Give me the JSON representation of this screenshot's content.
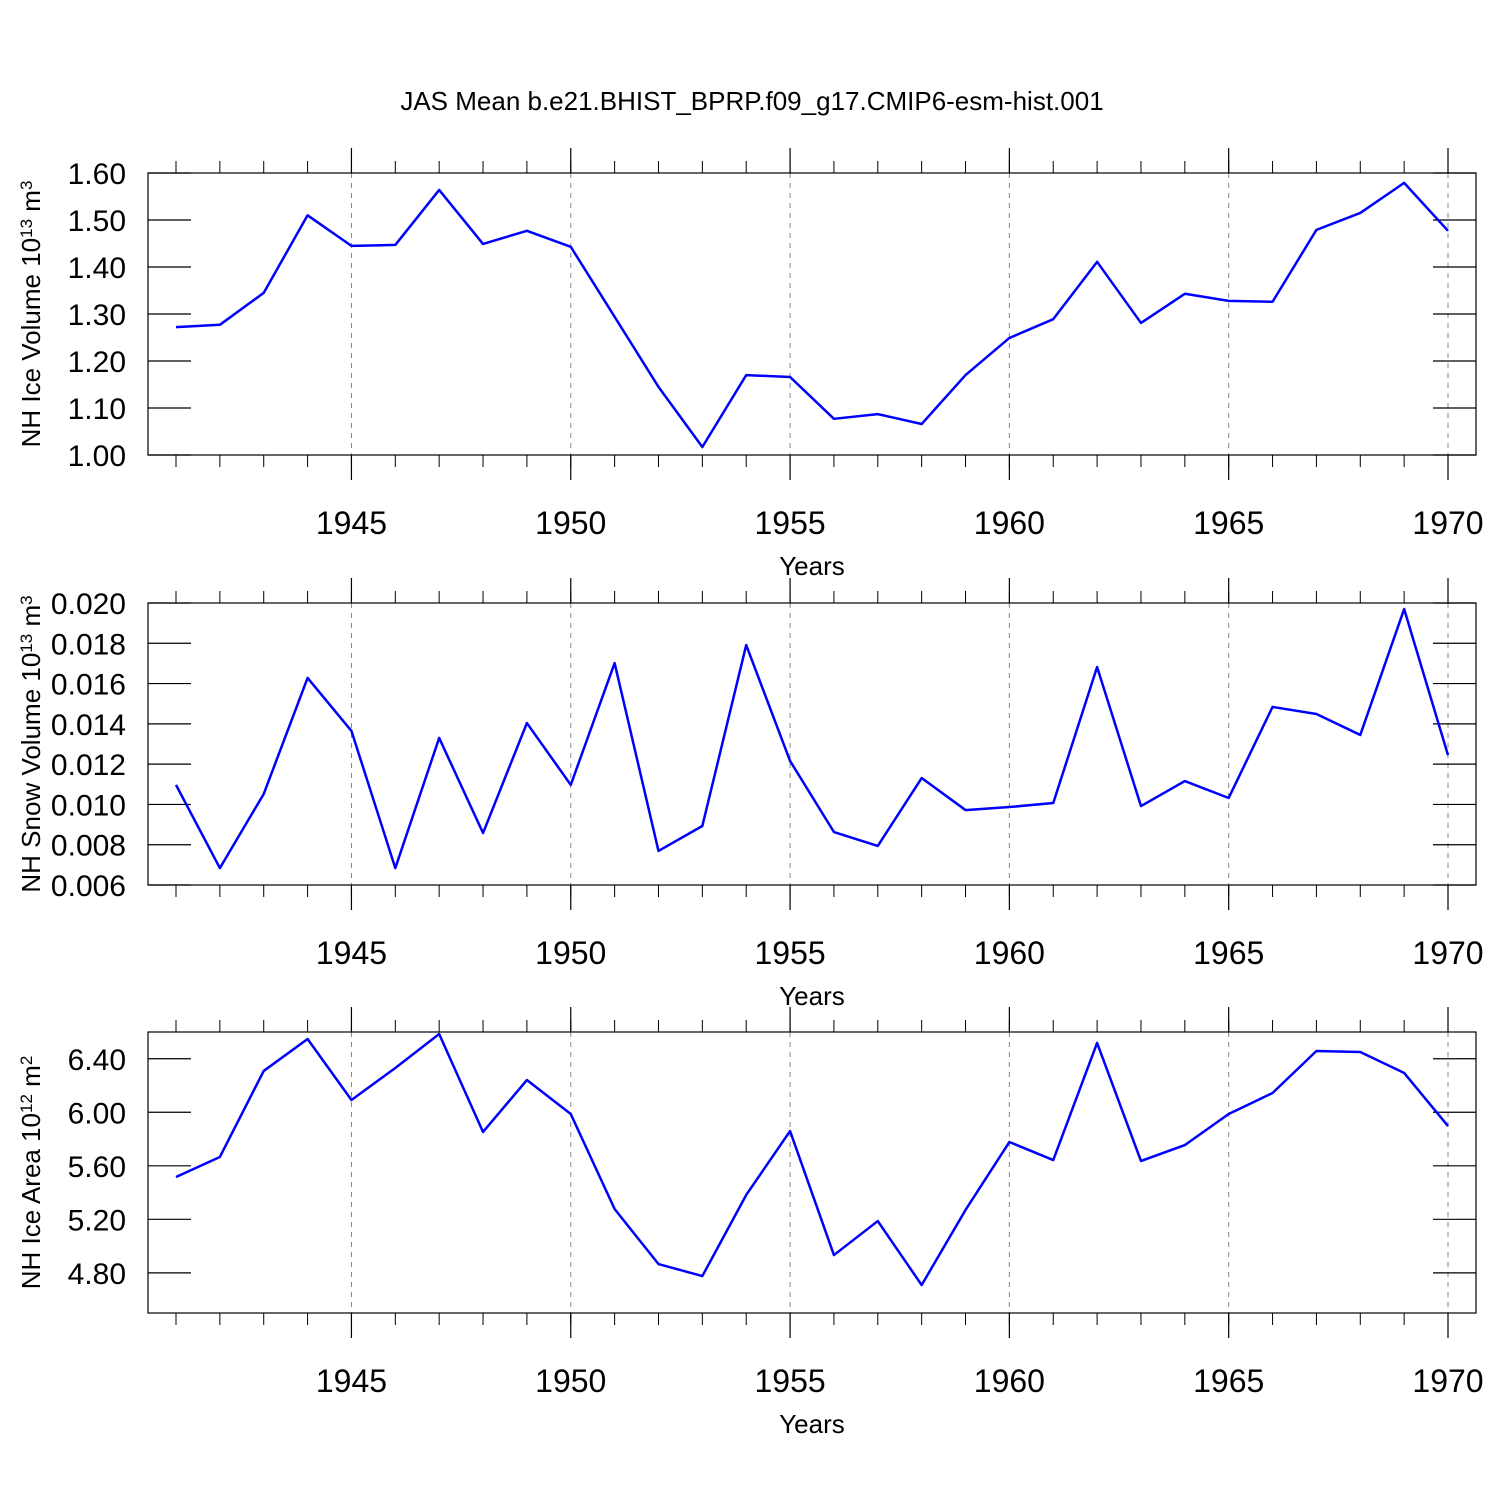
{
  "chart_data": [
    {
      "type": "line",
      "title": "JAS Mean b.e21.BHIST_BPRP.f09_g17.CMIP6-esm-hist.001",
      "ylabel": [
        "NH Ice Volume 10",
        "13",
        " m",
        "3"
      ],
      "xlabel": "Years",
      "color": "#0000ff",
      "grid": "x",
      "x": [
        1941,
        1942,
        1943,
        1944,
        1945,
        1946,
        1947,
        1948,
        1949,
        1950,
        1951,
        1952,
        1953,
        1954,
        1955,
        1956,
        1957,
        1958,
        1959,
        1960,
        1961,
        1962,
        1963,
        1964,
        1965,
        1966,
        1967,
        1968,
        1969,
        1970
      ],
      "values": [
        1.272,
        1.277,
        1.345,
        1.51,
        1.445,
        1.447,
        1.564,
        1.449,
        1.477,
        1.443,
        1.294,
        1.145,
        1.017,
        1.17,
        1.166,
        1.077,
        1.087,
        1.066,
        1.17,
        1.249,
        1.289,
        1.411,
        1.281,
        1.343,
        1.328,
        1.326,
        1.479,
        1.515,
        1.579,
        1.477
      ],
      "xlim": [
        1941,
        1970
      ],
      "xticks": [
        1945,
        1950,
        1955,
        1960,
        1965,
        1970
      ],
      "ylim": [
        1.0,
        1.6
      ],
      "yticks": [
        {
          "value": 1.0,
          "label": "1.00"
        },
        {
          "value": 1.1,
          "label": "1.10"
        },
        {
          "value": 1.2,
          "label": "1.20"
        },
        {
          "value": 1.3,
          "label": "1.30"
        },
        {
          "value": 1.4,
          "label": "1.40"
        },
        {
          "value": 1.5,
          "label": "1.50"
        },
        {
          "value": 1.6,
          "label": "1.60"
        }
      ]
    },
    {
      "type": "line",
      "ylabel": [
        "NH Snow Volume 10",
        "13",
        " m",
        "3"
      ],
      "xlabel": "Years",
      "color": "#0000ff",
      "grid": "x",
      "x": [
        1941,
        1942,
        1943,
        1944,
        1945,
        1946,
        1947,
        1948,
        1949,
        1950,
        1951,
        1952,
        1953,
        1954,
        1955,
        1956,
        1957,
        1958,
        1959,
        1960,
        1961,
        1962,
        1963,
        1964,
        1965,
        1966,
        1967,
        1968,
        1969,
        1970
      ],
      "values": [
        0.01097,
        0.00684,
        0.01052,
        0.01628,
        0.01365,
        0.00684,
        0.0133,
        0.00858,
        0.01404,
        0.01097,
        0.01702,
        0.00769,
        0.00893,
        0.01791,
        0.01216,
        0.00863,
        0.00794,
        0.01131,
        0.00972,
        0.00987,
        0.01007,
        0.01682,
        0.00992,
        0.01116,
        0.01032,
        0.01484,
        0.01449,
        0.01345,
        0.0197,
        0.01245
      ],
      "xlim": [
        1941,
        1970
      ],
      "xticks": [
        1945,
        1950,
        1955,
        1960,
        1965,
        1970
      ],
      "ylim": [
        0.006,
        0.02
      ],
      "yticks": [
        0.006,
        0.008,
        {
          "value": 0.01,
          "label": "0.010"
        },
        0.012,
        0.014,
        0.016,
        0.018,
        {
          "value": 0.02,
          "label": "0.020"
        }
      ]
    },
    {
      "type": "line",
      "ylabel": [
        "NH Ice Area 10",
        "12",
        " m",
        "2"
      ],
      "xlabel": "Years",
      "color": "#0000ff",
      "grid": "x",
      "x": [
        1941,
        1942,
        1943,
        1944,
        1945,
        1946,
        1947,
        1948,
        1949,
        1950,
        1951,
        1952,
        1953,
        1954,
        1955,
        1956,
        1957,
        1958,
        1959,
        1960,
        1961,
        1962,
        1963,
        1964,
        1965,
        1966,
        1967,
        1968,
        1969,
        1970
      ],
      "values": [
        5.516,
        5.666,
        6.309,
        6.548,
        6.092,
        6.331,
        6.585,
        5.853,
        6.241,
        5.987,
        5.277,
        4.866,
        4.776,
        5.382,
        5.86,
        4.933,
        5.187,
        4.709,
        5.27,
        5.778,
        5.643,
        6.518,
        5.636,
        5.755,
        5.987,
        6.144,
        6.458,
        6.451,
        6.294,
        5.897
      ],
      "xlim": [
        1941,
        1970
      ],
      "xticks": [
        1945,
        1950,
        1955,
        1960,
        1965,
        1970
      ],
      "ylim": [
        4.5,
        6.6
      ],
      "yticks": [
        {
          "value": 4.8,
          "label": "4.80"
        },
        {
          "value": 5.2,
          "label": "5.20"
        },
        {
          "value": 5.6,
          "label": "5.60"
        },
        {
          "value": 6.0,
          "label": "6.00"
        },
        {
          "value": 6.4,
          "label": "6.40"
        }
      ]
    }
  ]
}
